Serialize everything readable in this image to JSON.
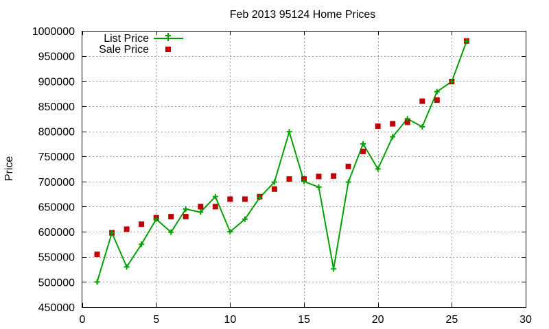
{
  "chart_data": {
    "type": "line",
    "title": "Feb 2013 95124 Home Prices",
    "xlabel": "",
    "ylabel": "Price",
    "xlim": [
      0,
      30
    ],
    "ylim": [
      450000,
      1000000
    ],
    "xticks": [
      0,
      5,
      10,
      15,
      20,
      25,
      30
    ],
    "yticks": [
      450000,
      500000,
      550000,
      600000,
      650000,
      700000,
      750000,
      800000,
      850000,
      900000,
      950000,
      1000000
    ],
    "grid": true,
    "legend_position": "top-left",
    "series": [
      {
        "name": "List Price",
        "kind": "line-with-plus-markers",
        "color": "#00a000",
        "x": [
          1,
          2,
          3,
          4,
          5,
          6,
          7,
          8,
          9,
          10,
          11,
          12,
          13,
          14,
          15,
          16,
          17,
          18,
          19,
          20,
          21,
          22,
          23,
          24,
          25,
          26
        ],
        "y": [
          500000,
          598000,
          530000,
          575000,
          625000,
          599000,
          645000,
          639000,
          670000,
          600000,
          625000,
          668000,
          699000,
          799000,
          700000,
          689000,
          526000,
          699000,
          775000,
          725000,
          789000,
          825000,
          809000,
          879000,
          899000,
          979000
        ]
      },
      {
        "name": "Sale Price",
        "kind": "square-markers",
        "color": "#c00000",
        "x": [
          1,
          2,
          3,
          4,
          5,
          6,
          7,
          8,
          9,
          10,
          11,
          12,
          13,
          14,
          15,
          16,
          17,
          18,
          19,
          20,
          21,
          22,
          23,
          24,
          25,
          26
        ],
        "y": [
          555000,
          598000,
          605000,
          615000,
          628000,
          630000,
          630000,
          650000,
          650000,
          665000,
          665000,
          670000,
          685000,
          705000,
          705000,
          710000,
          711000,
          730000,
          760000,
          810000,
          815000,
          818000,
          860000,
          862000,
          899000,
          980000
        ]
      }
    ]
  }
}
